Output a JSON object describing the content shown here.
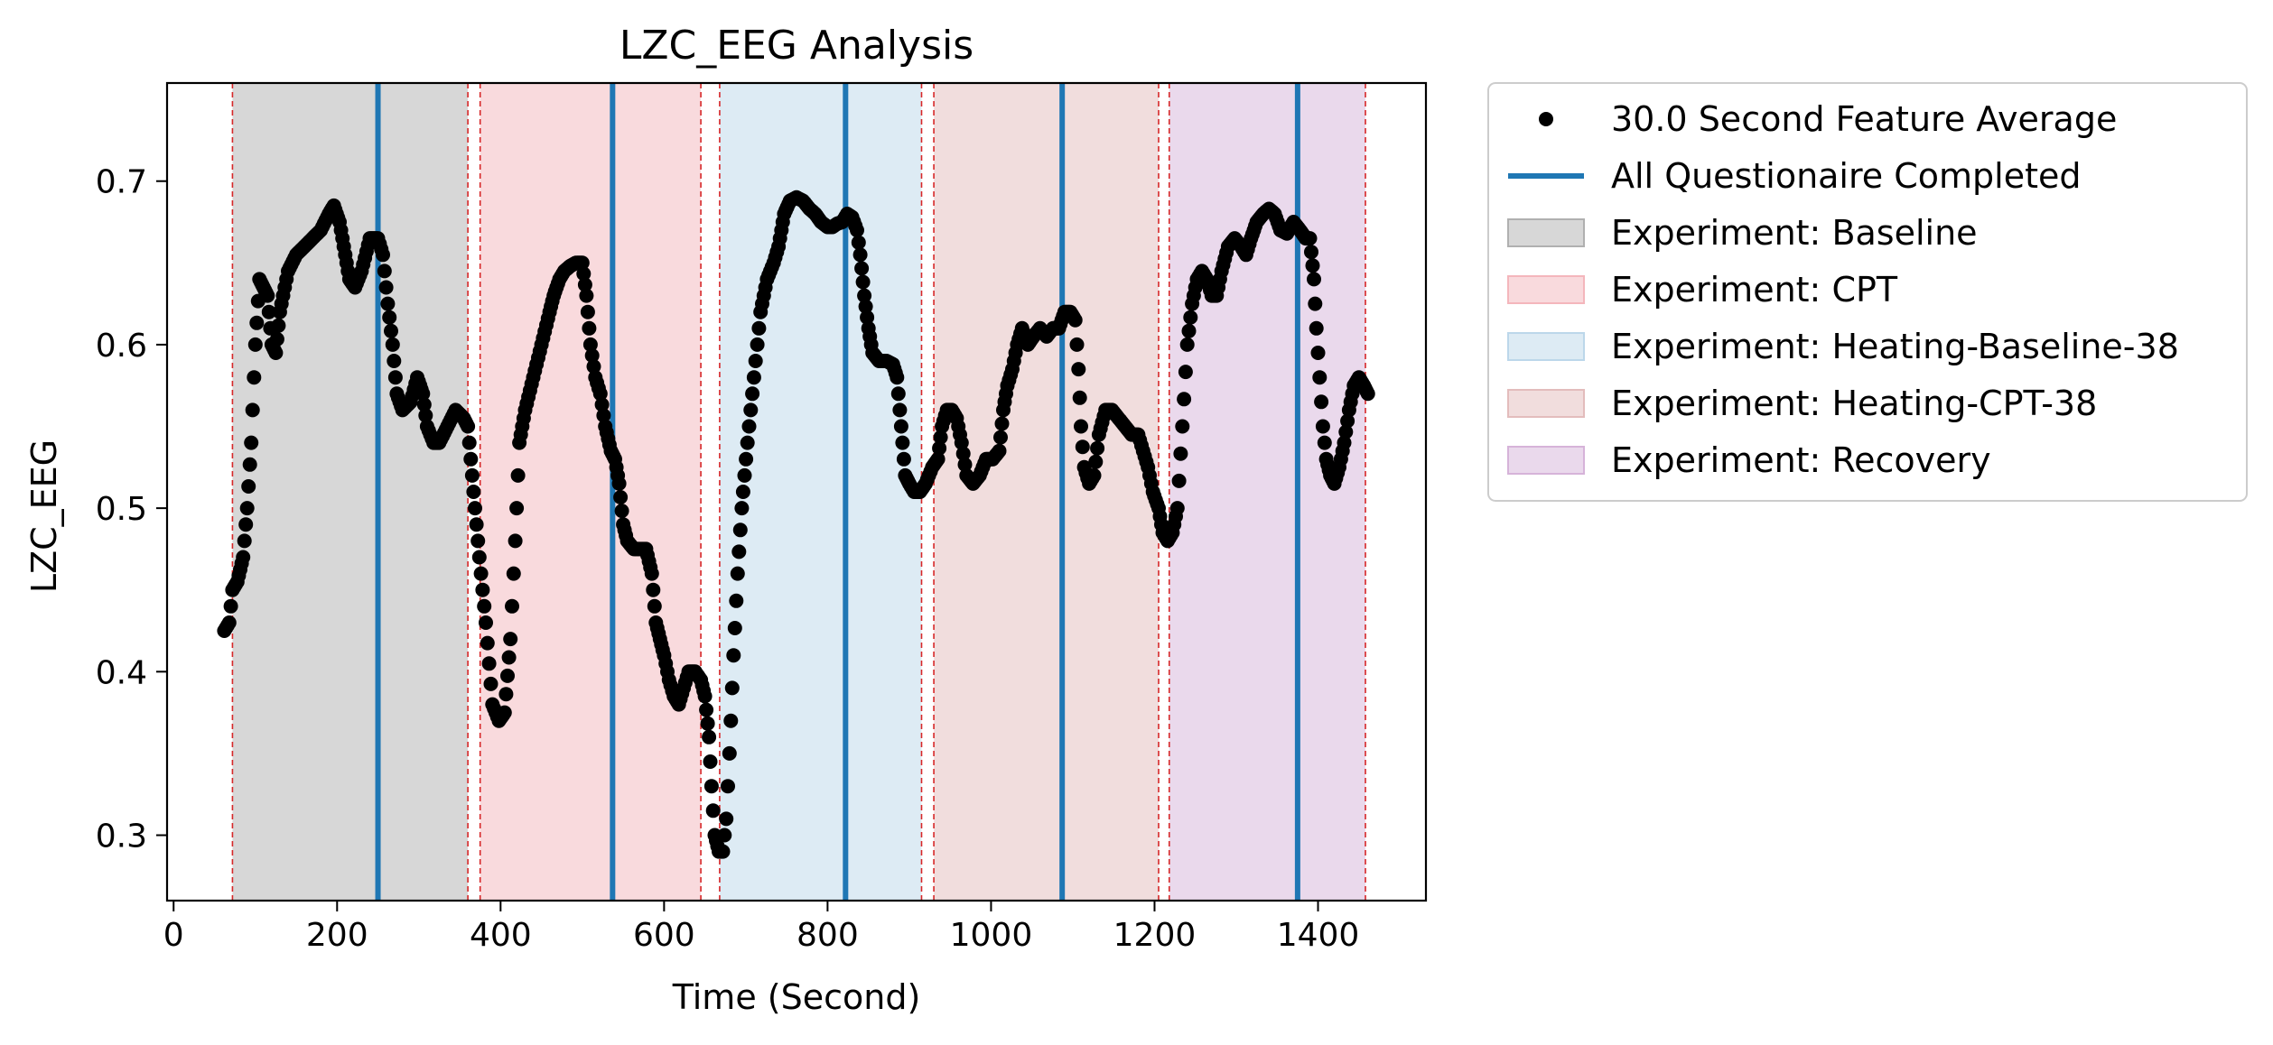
{
  "chart_data": {
    "type": "scatter",
    "title": "LZC_EEG Analysis",
    "xlabel": "Time (Second)",
    "ylabel": "LZC_EEG",
    "xlim": [
      -8,
      1532
    ],
    "ylim": [
      0.26,
      0.76
    ],
    "xticks": [
      0,
      200,
      400,
      600,
      800,
      1000,
      1200,
      1400
    ],
    "xtick_labels": [
      "0",
      "200",
      "400",
      "600",
      "800",
      "1000",
      "1200",
      "1400"
    ],
    "yticks": [
      0.3,
      0.4,
      0.5,
      0.6,
      0.7
    ],
    "ytick_labels": [
      "0.3",
      "0.4",
      "0.5",
      "0.6",
      "0.7"
    ],
    "grid": false,
    "legend_position": "outside-right-top",
    "legend": [
      {
        "label": "30.0 Second Feature Average",
        "kind": "marker",
        "color": "#000000"
      },
      {
        "label": "All Questionaire Completed",
        "kind": "line",
        "color": "#1f77b4"
      },
      {
        "label": "Experiment: Baseline",
        "kind": "patch",
        "color": "#b0b0b0"
      },
      {
        "label": "Experiment: CPT",
        "kind": "patch",
        "color": "#f4b6bc"
      },
      {
        "label": "Experiment: Heating-Baseline-38",
        "kind": "patch",
        "color": "#bcd7ea"
      },
      {
        "label": "Experiment: Heating-CPT-38",
        "kind": "patch",
        "color": "#e3bcbc"
      },
      {
        "label": "Experiment: Recovery",
        "kind": "patch",
        "color": "#d6b3d9"
      }
    ],
    "phases": [
      {
        "name": "Experiment: Baseline",
        "start": 72,
        "end": 360,
        "color": "#b0b0b0"
      },
      {
        "name": "Experiment: CPT",
        "start": 375,
        "end": 645,
        "color": "#f4b6bc"
      },
      {
        "name": "Experiment: Heating-Baseline-38",
        "start": 668,
        "end": 915,
        "color": "#bcd7ea"
      },
      {
        "name": "Experiment: Heating-CPT-38",
        "start": 930,
        "end": 1205,
        "color": "#e3bcbc"
      },
      {
        "name": "Experiment: Recovery",
        "start": 1218,
        "end": 1458,
        "color": "#d6b3d9"
      }
    ],
    "questionnaire_times": [
      250,
      537,
      822,
      1087,
      1375
    ],
    "series": [
      {
        "name": "30.0 Second Feature Average",
        "color": "#000000",
        "points": [
          [
            62,
            0.425
          ],
          [
            68,
            0.43
          ],
          [
            72,
            0.45
          ],
          [
            78,
            0.455
          ],
          [
            85,
            0.47
          ],
          [
            90,
            0.5
          ],
          [
            95,
            0.54
          ],
          [
            100,
            0.6
          ],
          [
            105,
            0.64
          ],
          [
            110,
            0.635
          ],
          [
            115,
            0.63
          ],
          [
            120,
            0.6
          ],
          [
            125,
            0.595
          ],
          [
            130,
            0.62
          ],
          [
            140,
            0.645
          ],
          [
            150,
            0.655
          ],
          [
            160,
            0.66
          ],
          [
            170,
            0.665
          ],
          [
            180,
            0.67
          ],
          [
            190,
            0.68
          ],
          [
            196,
            0.685
          ],
          [
            203,
            0.675
          ],
          [
            210,
            0.655
          ],
          [
            215,
            0.64
          ],
          [
            222,
            0.635
          ],
          [
            230,
            0.645
          ],
          [
            240,
            0.665
          ],
          [
            250,
            0.665
          ],
          [
            256,
            0.655
          ],
          [
            262,
            0.625
          ],
          [
            268,
            0.6
          ],
          [
            273,
            0.57
          ],
          [
            280,
            0.56
          ],
          [
            290,
            0.565
          ],
          [
            298,
            0.58
          ],
          [
            305,
            0.57
          ],
          [
            310,
            0.55
          ],
          [
            318,
            0.54
          ],
          [
            325,
            0.54
          ],
          [
            335,
            0.55
          ],
          [
            345,
            0.56
          ],
          [
            355,
            0.555
          ],
          [
            360,
            0.55
          ],
          [
            367,
            0.51
          ],
          [
            374,
            0.47
          ],
          [
            382,
            0.43
          ],
          [
            390,
            0.38
          ],
          [
            398,
            0.37
          ],
          [
            405,
            0.375
          ],
          [
            412,
            0.42
          ],
          [
            418,
            0.48
          ],
          [
            423,
            0.54
          ],
          [
            430,
            0.56
          ],
          [
            440,
            0.58
          ],
          [
            450,
            0.6
          ],
          [
            460,
            0.62
          ],
          [
            465,
            0.63
          ],
          [
            472,
            0.64
          ],
          [
            478,
            0.645
          ],
          [
            485,
            0.648
          ],
          [
            492,
            0.65
          ],
          [
            500,
            0.65
          ],
          [
            505,
            0.63
          ],
          [
            510,
            0.6
          ],
          [
            516,
            0.58
          ],
          [
            522,
            0.57
          ],
          [
            528,
            0.55
          ],
          [
            535,
            0.535
          ],
          [
            540,
            0.53
          ],
          [
            545,
            0.515
          ],
          [
            550,
            0.49
          ],
          [
            555,
            0.48
          ],
          [
            563,
            0.475
          ],
          [
            570,
            0.475
          ],
          [
            578,
            0.475
          ],
          [
            585,
            0.46
          ],
          [
            590,
            0.43
          ],
          [
            595,
            0.42
          ],
          [
            600,
            0.41
          ],
          [
            606,
            0.395
          ],
          [
            612,
            0.385
          ],
          [
            618,
            0.38
          ],
          [
            624,
            0.39
          ],
          [
            630,
            0.4
          ],
          [
            638,
            0.4
          ],
          [
            645,
            0.395
          ],
          [
            650,
            0.385
          ],
          [
            655,
            0.36
          ],
          [
            658,
            0.33
          ],
          [
            662,
            0.3
          ],
          [
            667,
            0.29
          ],
          [
            672,
            0.29
          ],
          [
            676,
            0.31
          ],
          [
            680,
            0.35
          ],
          [
            685,
            0.41
          ],
          [
            690,
            0.46
          ],
          [
            695,
            0.5
          ],
          [
            702,
            0.54
          ],
          [
            710,
            0.58
          ],
          [
            718,
            0.62
          ],
          [
            726,
            0.64
          ],
          [
            734,
            0.65
          ],
          [
            740,
            0.66
          ],
          [
            747,
            0.68
          ],
          [
            754,
            0.688
          ],
          [
            762,
            0.69
          ],
          [
            770,
            0.688
          ],
          [
            778,
            0.683
          ],
          [
            785,
            0.68
          ],
          [
            792,
            0.675
          ],
          [
            800,
            0.672
          ],
          [
            806,
            0.672
          ],
          [
            812,
            0.674
          ],
          [
            818,
            0.675
          ],
          [
            824,
            0.68
          ],
          [
            830,
            0.678
          ],
          [
            836,
            0.67
          ],
          [
            840,
            0.655
          ],
          [
            845,
            0.63
          ],
          [
            850,
            0.61
          ],
          [
            855,
            0.595
          ],
          [
            863,
            0.59
          ],
          [
            872,
            0.59
          ],
          [
            880,
            0.588
          ],
          [
            885,
            0.58
          ],
          [
            890,
            0.55
          ],
          [
            895,
            0.52
          ],
          [
            900,
            0.515
          ],
          [
            906,
            0.51
          ],
          [
            913,
            0.51
          ],
          [
            920,
            0.515
          ],
          [
            928,
            0.525
          ],
          [
            935,
            0.53
          ],
          [
            940,
            0.55
          ],
          [
            946,
            0.56
          ],
          [
            952,
            0.56
          ],
          [
            958,
            0.555
          ],
          [
            964,
            0.54
          ],
          [
            970,
            0.52
          ],
          [
            978,
            0.515
          ],
          [
            986,
            0.52
          ],
          [
            994,
            0.53
          ],
          [
            1002,
            0.53
          ],
          [
            1010,
            0.535
          ],
          [
            1015,
            0.56
          ],
          [
            1020,
            0.575
          ],
          [
            1026,
            0.585
          ],
          [
            1032,
            0.6
          ],
          [
            1038,
            0.61
          ],
          [
            1045,
            0.6
          ],
          [
            1052,
            0.605
          ],
          [
            1060,
            0.61
          ],
          [
            1068,
            0.605
          ],
          [
            1076,
            0.61
          ],
          [
            1083,
            0.61
          ],
          [
            1090,
            0.62
          ],
          [
            1097,
            0.62
          ],
          [
            1103,
            0.615
          ],
          [
            1107,
            0.585
          ],
          [
            1110,
            0.55
          ],
          [
            1114,
            0.525
          ],
          [
            1120,
            0.515
          ],
          [
            1126,
            0.52
          ],
          [
            1132,
            0.545
          ],
          [
            1140,
            0.56
          ],
          [
            1148,
            0.56
          ],
          [
            1156,
            0.555
          ],
          [
            1164,
            0.55
          ],
          [
            1172,
            0.545
          ],
          [
            1180,
            0.545
          ],
          [
            1186,
            0.535
          ],
          [
            1192,
            0.525
          ],
          [
            1198,
            0.51
          ],
          [
            1205,
            0.5
          ],
          [
            1210,
            0.485
          ],
          [
            1216,
            0.48
          ],
          [
            1222,
            0.485
          ],
          [
            1228,
            0.5
          ],
          [
            1234,
            0.55
          ],
          [
            1240,
            0.6
          ],
          [
            1246,
            0.625
          ],
          [
            1252,
            0.64
          ],
          [
            1258,
            0.645
          ],
          [
            1264,
            0.64
          ],
          [
            1270,
            0.63
          ],
          [
            1276,
            0.63
          ],
          [
            1282,
            0.645
          ],
          [
            1290,
            0.66
          ],
          [
            1298,
            0.665
          ],
          [
            1306,
            0.66
          ],
          [
            1312,
            0.655
          ],
          [
            1318,
            0.665
          ],
          [
            1325,
            0.675
          ],
          [
            1333,
            0.68
          ],
          [
            1340,
            0.683
          ],
          [
            1347,
            0.68
          ],
          [
            1354,
            0.67
          ],
          [
            1362,
            0.668
          ],
          [
            1370,
            0.675
          ],
          [
            1378,
            0.67
          ],
          [
            1385,
            0.665
          ],
          [
            1390,
            0.665
          ],
          [
            1395,
            0.64
          ],
          [
            1398,
            0.61
          ],
          [
            1402,
            0.58
          ],
          [
            1406,
            0.55
          ],
          [
            1410,
            0.53
          ],
          [
            1415,
            0.52
          ],
          [
            1420,
            0.515
          ],
          [
            1426,
            0.525
          ],
          [
            1432,
            0.54
          ],
          [
            1438,
            0.56
          ],
          [
            1444,
            0.575
          ],
          [
            1450,
            0.58
          ],
          [
            1456,
            0.575
          ],
          [
            1461,
            0.57
          ]
        ]
      }
    ]
  }
}
